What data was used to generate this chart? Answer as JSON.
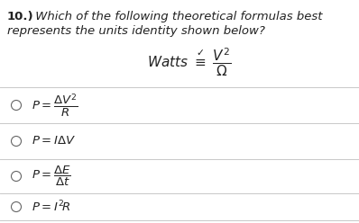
{
  "bg_color": "#ffffff",
  "text_color": "#222222",
  "line_color": "#c8c8c8",
  "circle_color": "#666666",
  "title_num": "10.)",
  "title_text": " Which of the following theoretical formulas best",
  "title_text2": "represents the units identity shown below?",
  "identity": "$\\mathit{Watts}\\ \\overset{\\checkmark}{\\equiv}\\ \\dfrac{V^2}{\\Omega}$",
  "options": [
    "$P = \\dfrac{\\Delta V^2}{R}$",
    "$P = I\\Delta V$",
    "$P = \\dfrac{\\Delta E}{\\Delta t}$",
    "$P = I^2\\!R$"
  ],
  "font_size_title": 9.5,
  "font_size_identity": 11,
  "font_size_options": 9.5
}
